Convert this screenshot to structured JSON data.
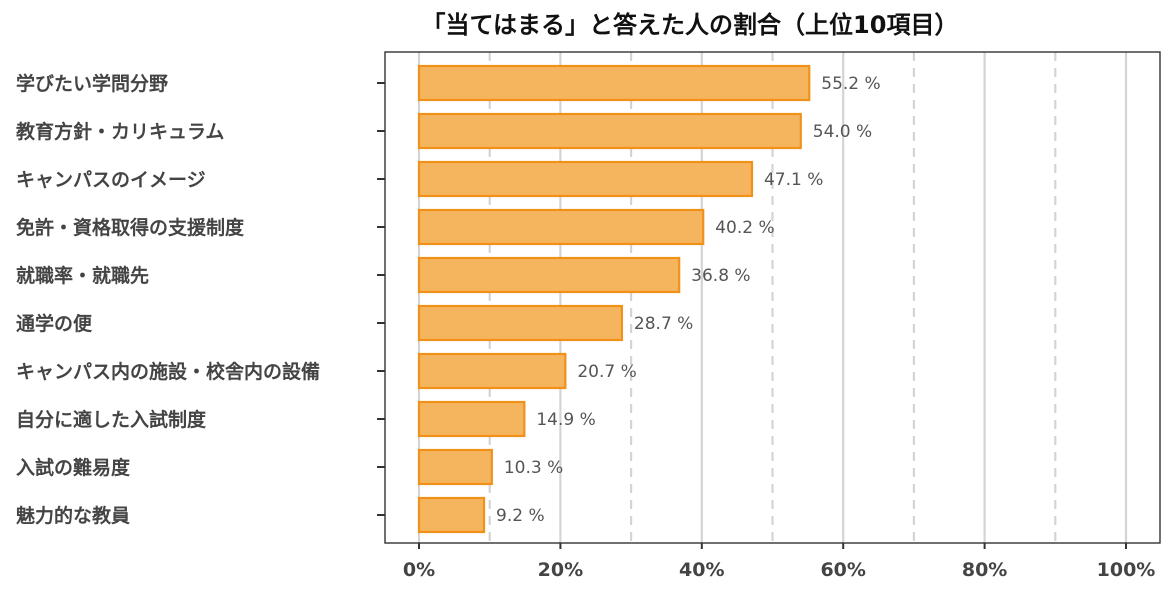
{
  "chart_data": {
    "type": "bar",
    "orientation": "horizontal",
    "title": "「当てはまる」と答えた人の割合（上位10項目）",
    "categories": [
      "学びたい学問分野",
      "教育方針・カリキュラム",
      "キャンパスのイメージ",
      "免許・資格取得の支援制度",
      "就職率・就職先",
      "通学の便",
      "キャンパス内の施設・校舎内の設備",
      "自分に適した入試制度",
      "入試の難易度",
      "魅力的な教員"
    ],
    "values": [
      55.2,
      54.0,
      47.1,
      40.2,
      36.8,
      28.7,
      20.7,
      14.9,
      10.3,
      9.2
    ],
    "value_labels": [
      "55.2 %",
      "54.0 %",
      "47.1 %",
      "40.2 %",
      "36.8 %",
      "28.7 %",
      "20.7 %",
      "14.9 %",
      "10.3 %",
      "9.2 %"
    ],
    "xticks": [
      0,
      20,
      40,
      60,
      80,
      100
    ],
    "xtick_labels": [
      "0%",
      "20%",
      "40%",
      "60%",
      "80%",
      "100%"
    ],
    "minor_gridlines": [
      10,
      30,
      50,
      70,
      90
    ],
    "xlim": [
      0,
      100
    ],
    "xlabel": "",
    "ylabel": "",
    "grid": true,
    "legend": "none",
    "colors": {
      "bar_fill": "#f5b55f",
      "bar_stroke": "#f0921a",
      "major_grid": "#d4d4d4",
      "minor_grid": "#d4d4d4",
      "frame": "#333333",
      "text": "#444444"
    }
  }
}
